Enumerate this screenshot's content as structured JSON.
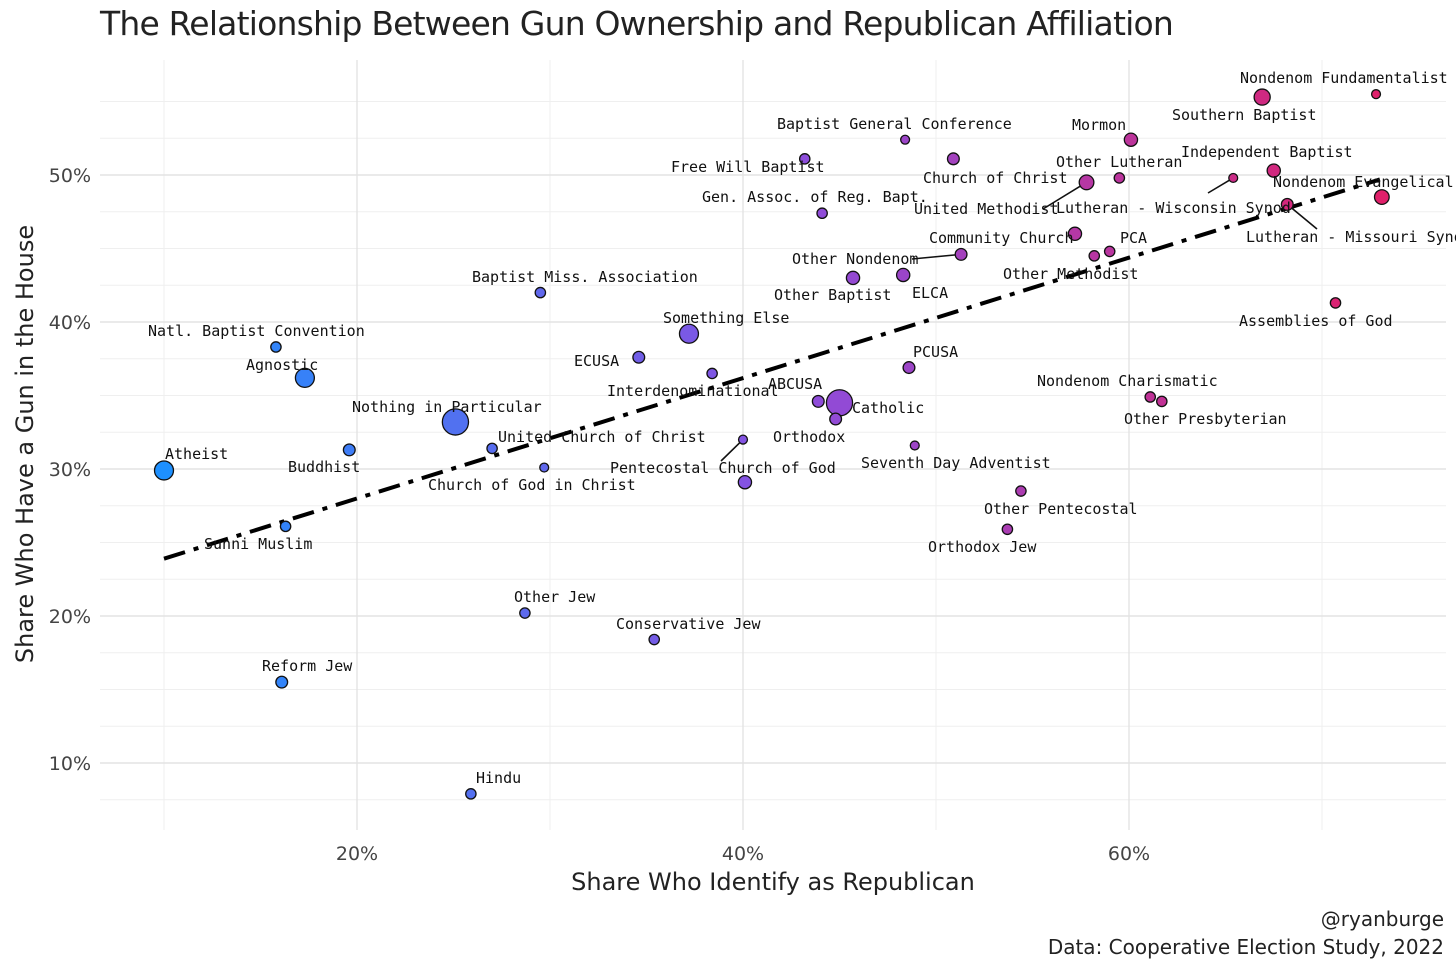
{
  "chart_data": {
    "type": "scatter",
    "title": "The Relationship Between Gun Ownership and Republican Affiliation",
    "xlabel": "Share Who Identify as Republican",
    "ylabel": "Share Who Have a Gun in the House",
    "xlim": [
      0.07,
      0.76
    ],
    "ylim": [
      0.06,
      0.57
    ],
    "xticks": [
      0.2,
      0.4,
      0.6
    ],
    "xtick_labels": [
      "20%",
      "40%",
      "60%"
    ],
    "yticks": [
      0.1,
      0.2,
      0.3,
      0.4,
      0.5
    ],
    "ytick_labels": [
      "10%",
      "20%",
      "30%",
      "40%",
      "50%"
    ],
    "grid": true,
    "legend": "none",
    "trend_line": {
      "style": "dash-dot",
      "color": "#000000",
      "from": [
        0.1,
        0.239
      ],
      "to": [
        0.73,
        0.497
      ]
    },
    "color_scale": {
      "low": "#1e90ff",
      "mid": "#8a4fe0",
      "high": "#e0206a"
    },
    "points": [
      {
        "name": "Atheist",
        "x": 0.1,
        "y": 0.299,
        "size": 9
      },
      {
        "name": "Agnostic",
        "x": 0.173,
        "y": 0.362,
        "size": 9
      },
      {
        "name": "Natl. Baptist Convention",
        "x": 0.158,
        "y": 0.383,
        "size": 3
      },
      {
        "name": "Sunni Muslim",
        "x": 0.163,
        "y": 0.261,
        "size": 3
      },
      {
        "name": "Reform Jew",
        "x": 0.161,
        "y": 0.155,
        "size": 4
      },
      {
        "name": "Buddhist",
        "x": 0.196,
        "y": 0.313,
        "size": 4
      },
      {
        "name": "Nothing in Particular",
        "x": 0.251,
        "y": 0.332,
        "size": 14
      },
      {
        "name": "Hindu",
        "x": 0.259,
        "y": 0.079,
        "size": 3
      },
      {
        "name": "United Church of Christ",
        "x": 0.27,
        "y": 0.314,
        "size": 3
      },
      {
        "name": "Other Jew",
        "x": 0.287,
        "y": 0.202,
        "size": 3
      },
      {
        "name": "Baptist Miss. Association",
        "x": 0.295,
        "y": 0.42,
        "size": 3
      },
      {
        "name": "Church of God in Christ",
        "x": 0.297,
        "y": 0.301,
        "size": 2
      },
      {
        "name": "ECUSA",
        "x": 0.346,
        "y": 0.376,
        "size": 4
      },
      {
        "name": "Conservative Jew",
        "x": 0.354,
        "y": 0.184,
        "size": 3
      },
      {
        "name": "Something Else",
        "x": 0.372,
        "y": 0.392,
        "size": 9
      },
      {
        "name": "Interdenominational",
        "x": 0.384,
        "y": 0.365,
        "size": 3
      },
      {
        "name": "Pentecostal Church of God",
        "x": 0.4,
        "y": 0.32,
        "size": 2
      },
      {
        "name": "Other Pentecostal (dot)",
        "x": 0.401,
        "y": 0.291,
        "size": 5
      },
      {
        "name": "Free Will Baptist",
        "x": 0.432,
        "y": 0.511,
        "size": 3
      },
      {
        "name": "ABCUSA",
        "x": 0.439,
        "y": 0.346,
        "size": 4
      },
      {
        "name": "Gen. Assoc. of Reg. Bapt.",
        "x": 0.441,
        "y": 0.474,
        "size": 3
      },
      {
        "name": "Catholic",
        "x": 0.45,
        "y": 0.345,
        "size": 14
      },
      {
        "name": "Orthodox",
        "x": 0.448,
        "y": 0.334,
        "size": 4
      },
      {
        "name": "Other Baptist",
        "x": 0.457,
        "y": 0.43,
        "size": 5
      },
      {
        "name": "ELCA",
        "x": 0.483,
        "y": 0.432,
        "size": 5
      },
      {
        "name": "Baptist General Conference",
        "x": 0.484,
        "y": 0.524,
        "size": 2
      },
      {
        "name": "PCUSA",
        "x": 0.486,
        "y": 0.369,
        "size": 4
      },
      {
        "name": "Seventh Day Adventist",
        "x": 0.489,
        "y": 0.316,
        "size": 2
      },
      {
        "name": "Church of Christ",
        "x": 0.509,
        "y": 0.511,
        "size": 4
      },
      {
        "name": "Other Nondenom",
        "x": 0.513,
        "y": 0.446,
        "size": 4
      },
      {
        "name": "Orthodox Jew",
        "x": 0.537,
        "y": 0.259,
        "size": 3
      },
      {
        "name": "Other Pentecostal",
        "x": 0.544,
        "y": 0.285,
        "size": 3
      },
      {
        "name": "Community Church",
        "x": 0.572,
        "y": 0.46,
        "size": 5
      },
      {
        "name": "United Methodist",
        "x": 0.578,
        "y": 0.495,
        "size": 6
      },
      {
        "name": "Other Methodist",
        "x": 0.582,
        "y": 0.445,
        "size": 3
      },
      {
        "name": "PCA",
        "x": 0.59,
        "y": 0.448,
        "size": 3
      },
      {
        "name": "Other Lutheran",
        "x": 0.595,
        "y": 0.498,
        "size": 3
      },
      {
        "name": "Mormon",
        "x": 0.601,
        "y": 0.524,
        "size": 5
      },
      {
        "name": "Nondenom Charismatic",
        "x": 0.611,
        "y": 0.349,
        "size": 3
      },
      {
        "name": "Other Presbyterian",
        "x": 0.617,
        "y": 0.346,
        "size": 3
      },
      {
        "name": "Lutheran - Wisconsin Synod",
        "x": 0.654,
        "y": 0.498,
        "size": 2
      },
      {
        "name": "Southern Baptist",
        "x": 0.669,
        "y": 0.553,
        "size": 7
      },
      {
        "name": "Independent Baptist",
        "x": 0.675,
        "y": 0.503,
        "size": 5
      },
      {
        "name": "Lutheran - Missouri Synod",
        "x": 0.682,
        "y": 0.48,
        "size": 4
      },
      {
        "name": "Assemblies of God",
        "x": 0.707,
        "y": 0.413,
        "size": 3
      },
      {
        "name": "Nondenom Fundamentalist",
        "x": 0.728,
        "y": 0.555,
        "size": 2
      },
      {
        "name": "Nondenom Evangelical",
        "x": 0.731,
        "y": 0.485,
        "size": 6
      }
    ],
    "labels": [
      {
        "text": "Atheist"
      },
      {
        "text": "Agnostic"
      },
      {
        "text": "Natl. Baptist Convention"
      },
      {
        "text": "Sunni Muslim"
      },
      {
        "text": "Reform Jew"
      },
      {
        "text": "Buddhist"
      },
      {
        "text": "Nothing in Particular"
      },
      {
        "text": "Hindu"
      },
      {
        "text": "United Church of Christ"
      },
      {
        "text": "Other Jew"
      },
      {
        "text": "Baptist Miss. Association"
      },
      {
        "text": "Church of God in Christ"
      },
      {
        "text": "ECUSA"
      },
      {
        "text": "Conservative Jew"
      },
      {
        "text": "Something Else"
      },
      {
        "text": "Interdenominational"
      },
      {
        "text": "Pentecostal Church of God"
      },
      {
        "text": "Free Will Baptist"
      },
      {
        "text": "ABCUSA"
      },
      {
        "text": "Gen. Assoc. of Reg. Bapt."
      },
      {
        "text": "Catholic"
      },
      {
        "text": "Orthodox"
      },
      {
        "text": "Other Baptist"
      },
      {
        "text": "ELCA"
      },
      {
        "text": "Baptist General Conference"
      },
      {
        "text": "PCUSA"
      },
      {
        "text": "Seventh Day Adventist"
      },
      {
        "text": "Church of Christ"
      },
      {
        "text": "Other Nondenom"
      },
      {
        "text": "Orthodox Jew"
      },
      {
        "text": "Other Pentecostal"
      },
      {
        "text": "Community Church"
      },
      {
        "text": "United Methodist"
      },
      {
        "text": "Other Methodist"
      },
      {
        "text": "PCA"
      },
      {
        "text": "Other Lutheran"
      },
      {
        "text": "Mormon"
      },
      {
        "text": "Nondenom Charismatic"
      },
      {
        "text": "Other Presbyterian"
      },
      {
        "text": "Lutheran - Wisconsin Synod"
      },
      {
        "text": "Southern Baptist"
      },
      {
        "text": "Independent Baptist"
      },
      {
        "text": "Lutheran - Missouri Synod"
      },
      {
        "text": "Assemblies of God"
      },
      {
        "text": "Nondenom Fundamentalist"
      },
      {
        "text": "Nondenom Evangelical"
      }
    ],
    "leader_lines": [
      {
        "label": "United Methodist",
        "to_point": "United Methodist"
      },
      {
        "label": "Other Nondenom",
        "to_point": "Other Nondenom"
      },
      {
        "label": "Pentecostal Church of God",
        "to_point": "Pentecostal Church of God"
      },
      {
        "label": "Lutheran - Wisconsin Synod",
        "to_point": "Lutheran - Wisconsin Synod"
      },
      {
        "label": "Lutheran - Missouri Synod",
        "to_point": "Lutheran - Missouri Synod"
      }
    ]
  },
  "credit": {
    "handle": "@ryanburge",
    "source": "Data: Cooperative Election Study, 2022"
  }
}
